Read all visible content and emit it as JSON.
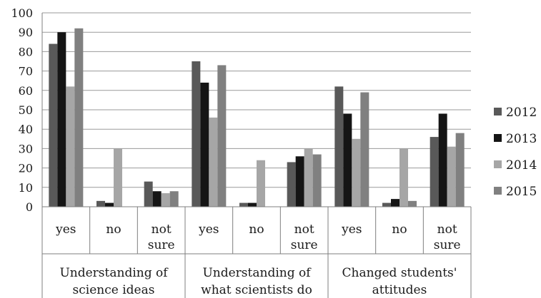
{
  "chart_data": {
    "type": "bar",
    "title": "",
    "xlabel": "",
    "ylabel": "",
    "ylim": [
      0,
      100
    ],
    "yticks": [
      0,
      10,
      20,
      30,
      40,
      50,
      60,
      70,
      80,
      90,
      100
    ],
    "grid": true,
    "legend_position": "right",
    "groups": [
      {
        "label_lines": [
          "Understanding of",
          "science ideas"
        ]
      },
      {
        "label_lines": [
          "Understanding of",
          "what scientists do"
        ]
      },
      {
        "label_lines": [
          "Changed students'",
          "attitudes"
        ]
      }
    ],
    "categories": [
      {
        "group": 0,
        "label_lines": [
          "yes"
        ]
      },
      {
        "group": 0,
        "label_lines": [
          "no"
        ]
      },
      {
        "group": 0,
        "label_lines": [
          "not",
          "sure"
        ]
      },
      {
        "group": 1,
        "label_lines": [
          "yes"
        ]
      },
      {
        "group": 1,
        "label_lines": [
          "no"
        ]
      },
      {
        "group": 1,
        "label_lines": [
          "not",
          "sure"
        ]
      },
      {
        "group": 2,
        "label_lines": [
          "yes"
        ]
      },
      {
        "group": 2,
        "label_lines": [
          "no"
        ]
      },
      {
        "group": 2,
        "label_lines": [
          "not",
          "sure"
        ]
      }
    ],
    "series": [
      {
        "name": "2012",
        "color": "#595959",
        "values": [
          84,
          3,
          13,
          75,
          2,
          23,
          62,
          2,
          36
        ]
      },
      {
        "name": "2013",
        "color": "#151515",
        "values": [
          90,
          2,
          8,
          64,
          2,
          26,
          48,
          4,
          48
        ]
      },
      {
        "name": "2014",
        "color": "#a6a6a6",
        "values": [
          62,
          30,
          7,
          46,
          24,
          30,
          35,
          30,
          31
        ]
      },
      {
        "name": "2015",
        "color": "#808080",
        "values": [
          92,
          0,
          8,
          73,
          0,
          27,
          59,
          3,
          38
        ]
      }
    ]
  }
}
